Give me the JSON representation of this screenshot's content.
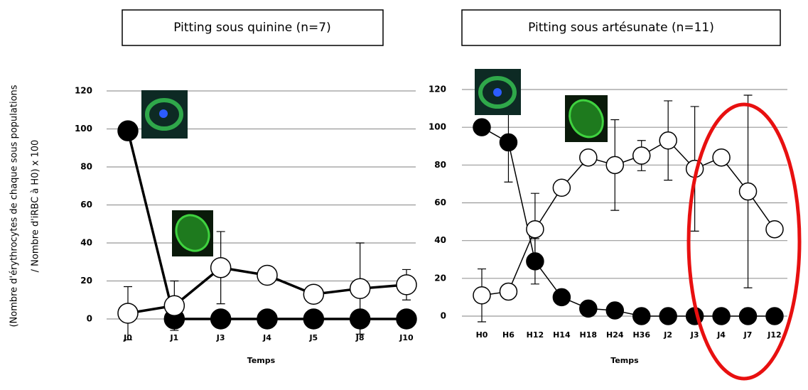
{
  "chart_data": [
    {
      "type": "line",
      "title": "Pitting sous quinine (n=7)",
      "ylabel": [
        "(Nombre d'érythrocytes de chaque sous populations",
        "/ Nombre d'iRBC à H0) x 100"
      ],
      "xlabel": "Temps",
      "categories": [
        "J0",
        "J1",
        "J3",
        "J4",
        "J5",
        "J8",
        "J10"
      ],
      "series": [
        {
          "color": "#000000",
          "values": [
            99,
            0,
            0,
            0,
            0,
            0,
            0
          ],
          "errors": [
            null,
            null,
            null,
            null,
            null,
            null,
            null
          ]
        },
        {
          "color": "#ffffff",
          "values": [
            3,
            7,
            27,
            23,
            13,
            16,
            18
          ],
          "errors": [
            14,
            13,
            19,
            null,
            null,
            24,
            8
          ]
        }
      ],
      "ylim": [
        0,
        120
      ],
      "yticks": [
        0,
        20,
        40,
        60,
        80,
        100,
        120
      ],
      "grid": true
    },
    {
      "type": "line",
      "title": "Pitting sous artésunate (n=11)",
      "xlabel": "Temps",
      "categories": [
        "H0",
        "H6",
        "H12",
        "H14",
        "H18",
        "H24",
        "H36",
        "J2",
        "J3",
        "J4",
        "J7",
        "J12"
      ],
      "series": [
        {
          "color": "#000000",
          "values": [
            100,
            92,
            29,
            10,
            4,
            3,
            0,
            0,
            0,
            0,
            0,
            0
          ],
          "errors": [
            null,
            21,
            12,
            null,
            null,
            null,
            null,
            null,
            null,
            null,
            null,
            null
          ]
        },
        {
          "color": "#ffffff",
          "values": [
            11,
            13,
            46,
            68,
            84,
            80,
            85,
            93,
            78,
            84,
            66,
            46
          ],
          "errors": [
            14,
            null,
            19,
            null,
            null,
            24,
            8,
            21,
            33,
            null,
            51,
            null
          ]
        }
      ],
      "ylim": [
        0,
        120
      ],
      "yticks": [
        0,
        20,
        40,
        60,
        80,
        100,
        120
      ],
      "grid": true
    }
  ]
}
